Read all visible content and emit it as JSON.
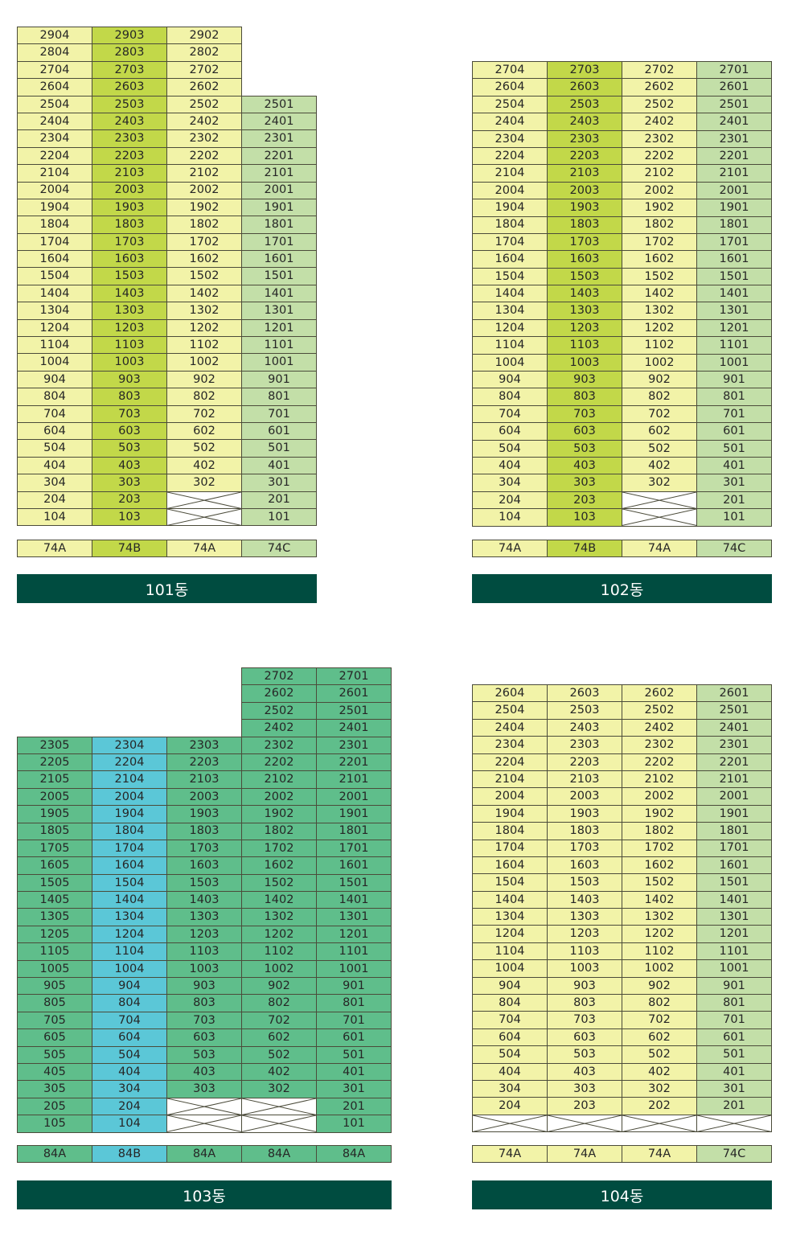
{
  "colors": {
    "light-yellow": "#f2f3a8",
    "lime": "#c2d849",
    "sage": "#c3dfa8",
    "green": "#5fbe8b",
    "cyan": "#5bc7d7",
    "label-background": "#004c40"
  },
  "blocks": [
    {
      "id": "b101",
      "label": "101동",
      "column_colors": [
        "light-yellow",
        "lime",
        "light-yellow",
        "sage"
      ],
      "rows": [
        [
          "2904",
          "2903",
          "2902",
          null
        ],
        [
          "2804",
          "2803",
          "2802",
          null
        ],
        [
          "2704",
          "2703",
          "2702",
          null
        ],
        [
          "2604",
          "2603",
          "2602",
          null
        ],
        [
          "2504",
          "2503",
          "2502",
          "2501"
        ],
        [
          "2404",
          "2403",
          "2402",
          "2401"
        ],
        [
          "2304",
          "2303",
          "2302",
          "2301"
        ],
        [
          "2204",
          "2203",
          "2202",
          "2201"
        ],
        [
          "2104",
          "2103",
          "2102",
          "2101"
        ],
        [
          "2004",
          "2003",
          "2002",
          "2001"
        ],
        [
          "1904",
          "1903",
          "1902",
          "1901"
        ],
        [
          "1804",
          "1803",
          "1802",
          "1801"
        ],
        [
          "1704",
          "1703",
          "1702",
          "1701"
        ],
        [
          "1604",
          "1603",
          "1602",
          "1601"
        ],
        [
          "1504",
          "1503",
          "1502",
          "1501"
        ],
        [
          "1404",
          "1403",
          "1402",
          "1401"
        ],
        [
          "1304",
          "1303",
          "1302",
          "1301"
        ],
        [
          "1204",
          "1203",
          "1202",
          "1201"
        ],
        [
          "1104",
          "1103",
          "1102",
          "1101"
        ],
        [
          "1004",
          "1003",
          "1002",
          "1001"
        ],
        [
          "904",
          "903",
          "902",
          "901"
        ],
        [
          "804",
          "803",
          "802",
          "801"
        ],
        [
          "704",
          "703",
          "702",
          "701"
        ],
        [
          "604",
          "603",
          "602",
          "601"
        ],
        [
          "504",
          "503",
          "502",
          "501"
        ],
        [
          "404",
          "403",
          "402",
          "401"
        ],
        [
          "304",
          "303",
          "302",
          "301"
        ],
        [
          "204",
          "203",
          "X",
          "201"
        ],
        [
          "104",
          "103",
          "X",
          "101"
        ]
      ],
      "types": [
        "74A",
        "74B",
        "74A",
        "74C"
      ]
    },
    {
      "id": "b102",
      "label": "102동",
      "column_colors": [
        "light-yellow",
        "lime",
        "light-yellow",
        "sage"
      ],
      "rows": [
        [
          "2704",
          "2703",
          "2702",
          "2701"
        ],
        [
          "2604",
          "2603",
          "2602",
          "2601"
        ],
        [
          "2504",
          "2503",
          "2502",
          "2501"
        ],
        [
          "2404",
          "2403",
          "2402",
          "2401"
        ],
        [
          "2304",
          "2303",
          "2302",
          "2301"
        ],
        [
          "2204",
          "2203",
          "2202",
          "2201"
        ],
        [
          "2104",
          "2103",
          "2102",
          "2101"
        ],
        [
          "2004",
          "2003",
          "2002",
          "2001"
        ],
        [
          "1904",
          "1903",
          "1902",
          "1901"
        ],
        [
          "1804",
          "1803",
          "1802",
          "1801"
        ],
        [
          "1704",
          "1703",
          "1702",
          "1701"
        ],
        [
          "1604",
          "1603",
          "1602",
          "1601"
        ],
        [
          "1504",
          "1503",
          "1502",
          "1501"
        ],
        [
          "1404",
          "1403",
          "1402",
          "1401"
        ],
        [
          "1304",
          "1303",
          "1302",
          "1301"
        ],
        [
          "1204",
          "1203",
          "1202",
          "1201"
        ],
        [
          "1104",
          "1103",
          "1102",
          "1101"
        ],
        [
          "1004",
          "1003",
          "1002",
          "1001"
        ],
        [
          "904",
          "903",
          "902",
          "901"
        ],
        [
          "804",
          "803",
          "802",
          "801"
        ],
        [
          "704",
          "703",
          "702",
          "701"
        ],
        [
          "604",
          "603",
          "602",
          "601"
        ],
        [
          "504",
          "503",
          "502",
          "501"
        ],
        [
          "404",
          "403",
          "402",
          "401"
        ],
        [
          "304",
          "303",
          "302",
          "301"
        ],
        [
          "204",
          "203",
          "X",
          "201"
        ],
        [
          "104",
          "103",
          "X",
          "101"
        ]
      ],
      "types": [
        "74A",
        "74B",
        "74A",
        "74C"
      ]
    },
    {
      "id": "b103",
      "label": "103동",
      "column_colors": [
        "green",
        "cyan",
        "green",
        "green",
        "green"
      ],
      "rows": [
        [
          null,
          null,
          null,
          "2702",
          "2701"
        ],
        [
          null,
          null,
          null,
          "2602",
          "2601"
        ],
        [
          null,
          null,
          null,
          "2502",
          "2501"
        ],
        [
          null,
          null,
          null,
          "2402",
          "2401"
        ],
        [
          "2305",
          "2304",
          "2303",
          "2302",
          "2301"
        ],
        [
          "2205",
          "2204",
          "2203",
          "2202",
          "2201"
        ],
        [
          "2105",
          "2104",
          "2103",
          "2102",
          "2101"
        ],
        [
          "2005",
          "2004",
          "2003",
          "2002",
          "2001"
        ],
        [
          "1905",
          "1904",
          "1903",
          "1902",
          "1901"
        ],
        [
          "1805",
          "1804",
          "1803",
          "1802",
          "1801"
        ],
        [
          "1705",
          "1704",
          "1703",
          "1702",
          "1701"
        ],
        [
          "1605",
          "1604",
          "1603",
          "1602",
          "1601"
        ],
        [
          "1505",
          "1504",
          "1503",
          "1502",
          "1501"
        ],
        [
          "1405",
          "1404",
          "1403",
          "1402",
          "1401"
        ],
        [
          "1305",
          "1304",
          "1303",
          "1302",
          "1301"
        ],
        [
          "1205",
          "1204",
          "1203",
          "1202",
          "1201"
        ],
        [
          "1105",
          "1104",
          "1103",
          "1102",
          "1101"
        ],
        [
          "1005",
          "1004",
          "1003",
          "1002",
          "1001"
        ],
        [
          "905",
          "904",
          "903",
          "902",
          "901"
        ],
        [
          "805",
          "804",
          "803",
          "802",
          "801"
        ],
        [
          "705",
          "704",
          "703",
          "702",
          "701"
        ],
        [
          "605",
          "604",
          "603",
          "602",
          "601"
        ],
        [
          "505",
          "504",
          "503",
          "502",
          "501"
        ],
        [
          "405",
          "404",
          "403",
          "402",
          "401"
        ],
        [
          "305",
          "304",
          "303",
          "302",
          "301"
        ],
        [
          "205",
          "204",
          "X",
          "X",
          "201"
        ],
        [
          "105",
          "104",
          "X",
          "X",
          "101"
        ]
      ],
      "types": [
        "84A",
        "84B",
        "84A",
        "84A",
        "84A"
      ]
    },
    {
      "id": "b104",
      "label": "104동",
      "column_colors": [
        "light-yellow",
        "light-yellow",
        "light-yellow",
        "sage"
      ],
      "rows": [
        [
          "2604",
          "2603",
          "2602",
          "2601"
        ],
        [
          "2504",
          "2503",
          "2502",
          "2501"
        ],
        [
          "2404",
          "2403",
          "2402",
          "2401"
        ],
        [
          "2304",
          "2303",
          "2302",
          "2301"
        ],
        [
          "2204",
          "2203",
          "2202",
          "2201"
        ],
        [
          "2104",
          "2103",
          "2102",
          "2101"
        ],
        [
          "2004",
          "2003",
          "2002",
          "2001"
        ],
        [
          "1904",
          "1903",
          "1902",
          "1901"
        ],
        [
          "1804",
          "1803",
          "1802",
          "1801"
        ],
        [
          "1704",
          "1703",
          "1702",
          "1701"
        ],
        [
          "1604",
          "1603",
          "1602",
          "1601"
        ],
        [
          "1504",
          "1503",
          "1502",
          "1501"
        ],
        [
          "1404",
          "1403",
          "1402",
          "1401"
        ],
        [
          "1304",
          "1303",
          "1302",
          "1301"
        ],
        [
          "1204",
          "1203",
          "1202",
          "1201"
        ],
        [
          "1104",
          "1103",
          "1102",
          "1101"
        ],
        [
          "1004",
          "1003",
          "1002",
          "1001"
        ],
        [
          "904",
          "903",
          "902",
          "901"
        ],
        [
          "804",
          "803",
          "802",
          "801"
        ],
        [
          "704",
          "703",
          "702",
          "701"
        ],
        [
          "604",
          "603",
          "602",
          "601"
        ],
        [
          "504",
          "503",
          "502",
          "501"
        ],
        [
          "404",
          "403",
          "402",
          "401"
        ],
        [
          "304",
          "303",
          "302",
          "301"
        ],
        [
          "204",
          "203",
          "202",
          "201"
        ],
        [
          "X",
          "X",
          "X",
          "X"
        ]
      ],
      "types": [
        "74A",
        "74A",
        "74A",
        "74C"
      ]
    }
  ]
}
